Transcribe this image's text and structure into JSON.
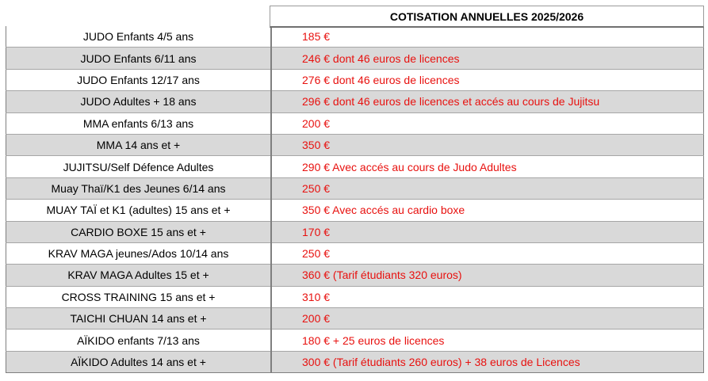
{
  "header": {
    "title": "COTISATION ANNUELLES 2025/2026"
  },
  "rows": [
    {
      "label": "JUDO Enfants 4/5 ans",
      "price": "185 €"
    },
    {
      "label": "JUDO Enfants 6/11 ans",
      "price": "246 € dont 46 euros de licences"
    },
    {
      "label": "JUDO Enfants 12/17 ans",
      "price": "276 € dont 46 euros de licences"
    },
    {
      "label": "JUDO Adultes + 18 ans",
      "price": "296 € dont 46 euros de licences et accés au cours de Jujitsu"
    },
    {
      "label": "MMA enfants 6/13 ans",
      "price": "200 €"
    },
    {
      "label": "MMA 14 ans et +",
      "price": "350 €"
    },
    {
      "label": "JUJITSU/Self Défence Adultes",
      "price": "290 €   Avec accés au cours de Judo Adultes"
    },
    {
      "label": "Muay Thaï/K1 des Jeunes 6/14 ans",
      "price": "250 €"
    },
    {
      "label": "MUAY TAÏ et K1 (adultes)  15 ans et +",
      "price": "350 €  Avec accés au cardio boxe"
    },
    {
      "label": "CARDIO BOXE 15 ans et +",
      "price": "170 €"
    },
    {
      "label": "KRAV MAGA jeunes/Ados 10/14 ans",
      "price": "250 €"
    },
    {
      "label": "KRAV MAGA Adultes 15 et +",
      "price": "360 €  (Tarif étudiants 320 euros)"
    },
    {
      "label": "CROSS TRAINING 15 ans et +",
      "price": "310 €"
    },
    {
      "label": "TAICHI CHUAN 14 ans et +",
      "price": "200 €"
    },
    {
      "label": "AÏKIDO enfants 7/13 ans",
      "price": "180 €   + 25 euros de licences"
    },
    {
      "label": "AÏKIDO Adultes 14 ans et +",
      "price": "300 €   (Tarif étudiants 260 euros) + 38 euros de Licences"
    }
  ]
}
